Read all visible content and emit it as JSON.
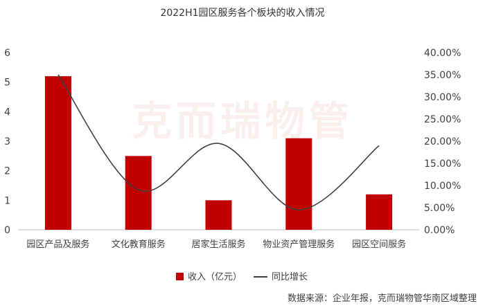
{
  "title": "2022H1园区服务各个板块的收入情况",
  "watermark": "克而瑞物管",
  "source": "数据来源：企业年报，克而瑞物管华南区域整理",
  "colors": {
    "bar": "#c00000",
    "line": "#3f3f3f",
    "axis": "#bfbfbf"
  },
  "chart_data": {
    "type": "bar",
    "categories": [
      "园区产品及服务",
      "文化教育服务",
      "居家生活服务",
      "物业资产管理服务",
      "园区空间服务"
    ],
    "series": [
      {
        "name": "收入（亿元）",
        "type": "bar",
        "axis": "left",
        "values": [
          5.2,
          2.5,
          1.0,
          3.1,
          1.2
        ]
      },
      {
        "name": "同比增长",
        "type": "line",
        "axis": "right",
        "smooth": true,
        "values": [
          0.35,
          0.09,
          0.195,
          0.045,
          0.19
        ]
      }
    ],
    "y_left": {
      "min": 0,
      "max": 6,
      "ticks": [
        "0",
        "1",
        "2",
        "3",
        "4",
        "5",
        "6"
      ]
    },
    "y_right": {
      "min": 0,
      "max": 0.4,
      "ticks": [
        "0.00%",
        "5.00%",
        "10.00%",
        "15.00%",
        "20.00%",
        "25.00%",
        "30.00%",
        "35.00%",
        "40.00%"
      ]
    },
    "legend": "bottom",
    "grid": false
  }
}
